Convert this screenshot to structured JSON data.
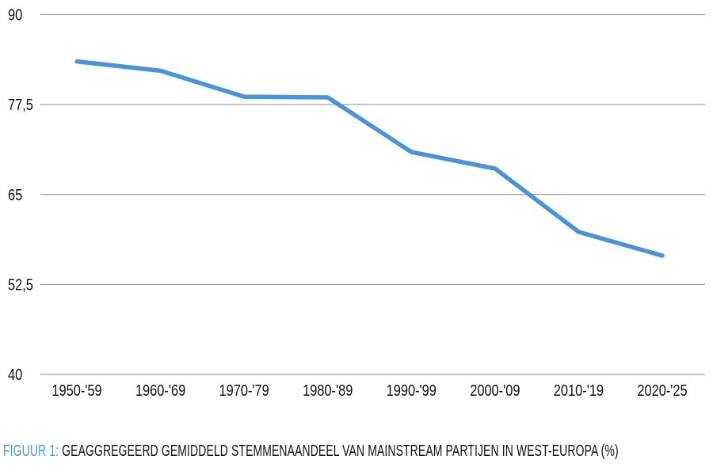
{
  "chart_data": {
    "type": "line",
    "categories": [
      "1950-'59",
      "1960-'69",
      "1970-'79",
      "1980-'89",
      "1990-'99",
      "2000-'09",
      "2010-'19",
      "2020-'25"
    ],
    "values": [
      83.5,
      82.2,
      78.6,
      78.5,
      70.9,
      68.6,
      59.8,
      56.5
    ],
    "series_name": "Geaggregeerd gemiddeld stemmenaandeel van mainstream partijen in West-Europa (%)",
    "title": "",
    "xlabel": "",
    "ylabel": "",
    "ylim": [
      40,
      90
    ],
    "yticks": [
      90,
      77.5,
      65,
      52.5,
      40
    ],
    "ytick_labels": [
      "90",
      "77,5",
      "65",
      "52,5",
      "40"
    ],
    "grid": true,
    "legend": "none",
    "line_color": "#4A93D5",
    "gridline_color": "#8A8A8A",
    "tick_color": "#111111"
  },
  "caption": {
    "label": "FIGUUR 1:",
    "text": " GEAGGREGEERD GEMIDDELD STEMMENAANDEEL VAN MAINSTREAM PARTIJEN IN WEST-EUROPA (%)",
    "label_color": "#459BDF",
    "text_color": "#111111"
  }
}
